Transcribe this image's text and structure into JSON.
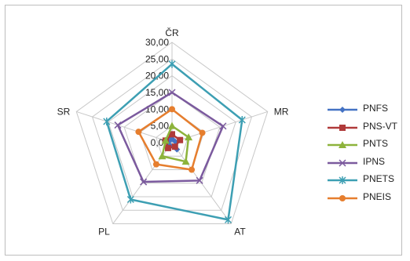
{
  "chart_data": {
    "type": "radar",
    "axes": [
      "ČR",
      "MR",
      "AT",
      "PL",
      "SR"
    ],
    "rmin": 0,
    "rmax": 30,
    "ticks": [
      "0,00",
      "5,00",
      "10,00",
      "15,00",
      "20,00",
      "25,00",
      "30,00"
    ],
    "tick_values": [
      0,
      5,
      10,
      15,
      20,
      25,
      30
    ],
    "grid": true,
    "legend_position": "right",
    "series": [
      {
        "name": "PNFS",
        "color": "#4472C4",
        "marker": "diamond",
        "values": [
          1.2,
          1.0,
          2.5,
          1.0,
          1.0
        ]
      },
      {
        "name": "PNS-VT",
        "color": "#B03A3A",
        "marker": "square",
        "values": [
          2.5,
          2.5,
          1.5,
          2.0,
          2.0
        ]
      },
      {
        "name": "PNTS",
        "color": "#8DB33B",
        "marker": "triangle",
        "values": [
          5.0,
          5.2,
          7.0,
          5.0,
          2.0
        ]
      },
      {
        "name": "IPNS",
        "color": "#7B5A9E",
        "marker": "x",
        "values": [
          15.0,
          16.0,
          14.0,
          14.5,
          17.0
        ]
      },
      {
        "name": "PNETS",
        "color": "#3D9FB3",
        "marker": "asterisk",
        "values": [
          23.5,
          22.0,
          28.5,
          21.0,
          20.5
        ]
      },
      {
        "name": "PNEIS",
        "color": "#E67E2E",
        "marker": "circle",
        "values": [
          10.0,
          9.5,
          10.0,
          8.0,
          10.5
        ]
      }
    ]
  }
}
